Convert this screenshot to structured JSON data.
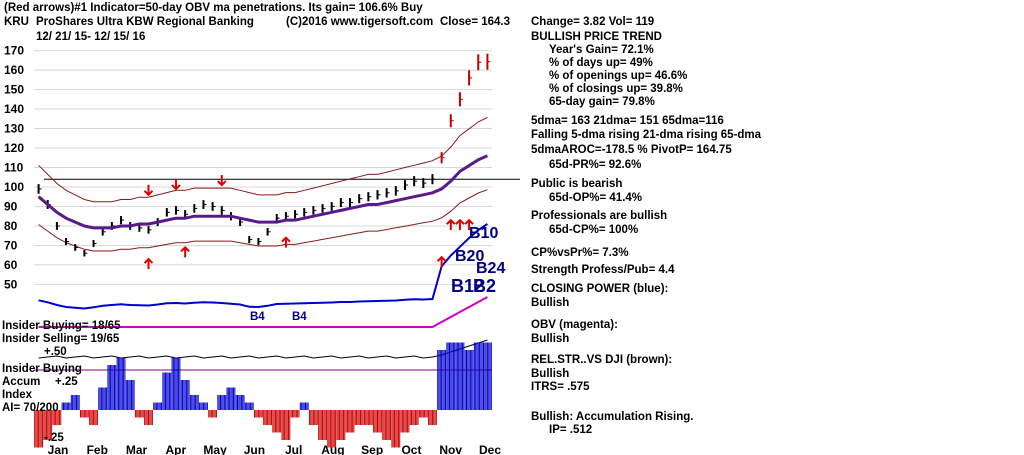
{
  "header": {
    "line1": "(Red arrows)#1 Indicator=50-day OBV ma penetrations. Its gain= 106.6% Buy",
    "ticker": "KRU",
    "name": "ProShares Ultra KBW Regional Banking",
    "copyright": "(C)2016 www.tigersoft.com",
    "close": "Close=  164.3",
    "change": "Change= 3.82 Vol= 119",
    "date_range": "12/ 21/ 15- 12/ 15/ 16"
  },
  "panel": {
    "title": "BULLISH PRICE TREND",
    "years_gain": "Year's Gain= 72.1%",
    "days_up": "% of days up= 49%",
    "openings_up": "% of openings up= 46.6%",
    "closings_up": "% of closings up= 39.8%",
    "gain_65": "65-day gain= 79.8%",
    "dma": "5dma= 163 21dma= 151 65dma=116",
    "dma_trend": "Falling 5-dma rising 21-dma rising 65-dma",
    "aroc": "5dmaAROC=-178.5 %  PivotP= 164.75",
    "pr_65": "65d-PR%= 92.6%",
    "public": "Public is bearish",
    "op_65": "65d-OP%= 41.4%",
    "professionals": "Professionals are bullish",
    "cp_65": "65d-CP%= 100%",
    "cpvspr": "CP%vsPr%=  7.3%",
    "strength": "Strength Profess/Pub= 4.4",
    "closing_power_label": "CLOSING POWER (blue):",
    "closing_power": "Bullish",
    "obv_label": "OBV (magenta):",
    "obv": "Bullish",
    "relstr_label": "REL.STR..VS DJI (brown):",
    "relstr": "Bullish",
    "itrs": "ITRS= .575",
    "accum": "Bullish: Accumulation Rising.",
    "ip": "IP=  .512"
  },
  "left_labels": {
    "insider_buying_ratio": "Insider Buying= 18/65",
    "insider_selling_ratio": "Insider Selling= 19/65",
    "plus50": "+.50",
    "insider_buying": "Insider Buying",
    "accum": "Accum",
    "plus25": "+.25",
    "index": "Index",
    "ai": "AI= 70/200",
    "minus25": "-.25"
  },
  "chart_data": {
    "type": "line",
    "title": "ProShares Ultra KBW Regional Banking",
    "ylim": [
      42,
      178
    ],
    "yticks": [
      50,
      60,
      70,
      80,
      90,
      100,
      110,
      120,
      130,
      140,
      150,
      160,
      170
    ],
    "reference_line": 104,
    "months": [
      "Jan",
      "Feb",
      "Mar",
      "Apr",
      "May",
      "Jun",
      "Jul",
      "Aug",
      "Sep",
      "Oct",
      "Nov",
      "Dec"
    ],
    "price_weekly": [
      99,
      91,
      80,
      72,
      69,
      66,
      71,
      77,
      80,
      83,
      80,
      79,
      78,
      82,
      87,
      88,
      86,
      89,
      91,
      90,
      88,
      85,
      82,
      73,
      72,
      77,
      84,
      85,
      86,
      87,
      88,
      89,
      90,
      92,
      92,
      94,
      95,
      96,
      97,
      98,
      101,
      103,
      102,
      104,
      115,
      134,
      145,
      156,
      164,
      164.3
    ],
    "ma65_weekly": [
      95,
      91,
      87,
      84,
      82,
      80,
      79,
      79,
      79,
      80,
      80,
      81,
      81,
      82,
      83,
      84,
      84,
      85,
      85,
      85,
      85,
      85,
      84,
      83,
      82,
      82,
      82,
      83,
      83,
      84,
      85,
      86,
      87,
      88,
      89,
      90,
      91,
      91,
      92,
      93,
      94,
      95,
      96,
      97,
      99,
      103,
      108,
      111,
      114,
      116
    ],
    "arrows_down": [
      {
        "week": 12,
        "price": 96
      },
      {
        "week": 15,
        "price": 99
      },
      {
        "week": 20,
        "price": 101
      }
    ],
    "arrows_up": [
      {
        "week": 12,
        "price": 63
      },
      {
        "week": 16,
        "price": 69
      },
      {
        "week": 27,
        "price": 74
      },
      {
        "week": 44,
        "price": 64
      },
      {
        "week": 45,
        "price": 83
      },
      {
        "week": 46,
        "price": 83
      },
      {
        "week": 47,
        "price": 83
      }
    ],
    "signals": [
      "B4",
      "B4",
      "B10",
      "B20",
      "B24",
      "B12",
      "B2"
    ],
    "accumulation_index": [
      -0.25,
      -0.2,
      -0.1,
      0.05,
      0.1,
      -0.05,
      -0.1,
      0.15,
      0.3,
      0.35,
      0.2,
      -0.05,
      -0.1,
      0.05,
      0.25,
      0.35,
      0.2,
      0.1,
      0.05,
      -0.05,
      0.1,
      0.15,
      0.1,
      0.05,
      -0.05,
      -0.1,
      -0.15,
      -0.2,
      -0.05,
      0.05,
      -0.1,
      -0.2,
      -0.25,
      -0.2,
      -0.15,
      -0.1,
      -0.1,
      -0.15,
      -0.2,
      -0.25,
      -0.15,
      -0.1,
      -0.05,
      -0.1,
      0.4,
      0.45,
      0.45,
      0.4,
      0.45,
      0.45
    ]
  }
}
